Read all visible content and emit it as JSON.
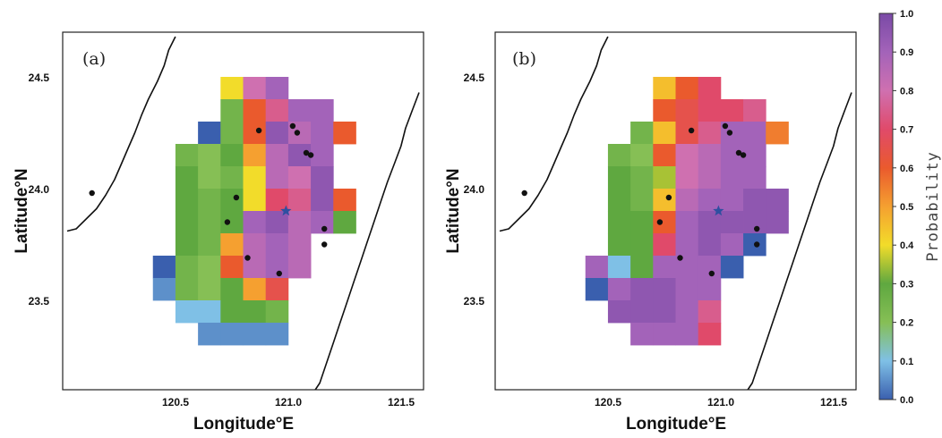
{
  "figure": {
    "colorbar": {
      "title": "Probability",
      "ticks": [
        "0.0",
        "0.1",
        "0.2",
        "0.3",
        "0.4",
        "0.5",
        "0.6",
        "0.7",
        "0.8",
        "0.9",
        "1.0"
      ]
    },
    "xlabel": "Longitude°E",
    "ylabel": "Latitude°N",
    "xticks": [
      "120.5",
      "121.0",
      "121.5"
    ],
    "yticks": [
      "24.5",
      "24.0",
      "23.5"
    ]
  },
  "map_data": {
    "extent": {
      "lon": [
        120.2,
        121.8
      ],
      "lat": [
        23.1,
        24.7
      ]
    },
    "grid_step": 0.1,
    "colorscale": [
      [
        0.0,
        "#3a5fae"
      ],
      [
        0.1,
        "#7fc0e6"
      ],
      [
        0.2,
        "#86bf55"
      ],
      [
        0.3,
        "#5fa840"
      ],
      [
        0.4,
        "#f2dc2a"
      ],
      [
        0.5,
        "#f5a030"
      ],
      [
        0.6,
        "#ea5a2d"
      ],
      [
        0.7,
        "#e04a6a"
      ],
      [
        0.8,
        "#cf70b0"
      ],
      [
        0.9,
        "#a363b9"
      ],
      [
        1.0,
        "#7a4aa6"
      ]
    ],
    "stations": [
      [
        120.33,
        23.98
      ],
      [
        120.97,
        23.96
      ],
      [
        120.93,
        23.85
      ],
      [
        121.07,
        24.26
      ],
      [
        121.22,
        24.28
      ],
      [
        121.24,
        24.25
      ],
      [
        121.28,
        24.16
      ],
      [
        121.3,
        24.15
      ],
      [
        121.02,
        23.69
      ],
      [
        121.16,
        23.62
      ]
    ],
    "extra_stations": [
      [
        121.36,
        23.82
      ],
      [
        121.36,
        23.75
      ]
    ],
    "epicenter": [
      121.19,
      23.9
    ],
    "panels": [
      {
        "label": "(a)",
        "cells": [
          [
            120.95,
            24.45,
            0.4
          ],
          [
            121.05,
            24.45,
            0.8
          ],
          [
            121.15,
            24.45,
            0.9
          ],
          [
            120.95,
            24.35,
            0.25
          ],
          [
            121.05,
            24.35,
            0.6
          ],
          [
            121.15,
            24.35,
            0.75
          ],
          [
            121.25,
            24.35,
            0.9
          ],
          [
            121.35,
            24.35,
            0.9
          ],
          [
            120.85,
            24.25,
            0.0
          ],
          [
            120.95,
            24.25,
            0.25
          ],
          [
            121.05,
            24.25,
            0.6
          ],
          [
            121.15,
            24.25,
            0.95
          ],
          [
            121.25,
            24.25,
            0.85
          ],
          [
            121.35,
            24.25,
            0.9
          ],
          [
            121.45,
            24.25,
            0.6
          ],
          [
            120.75,
            24.15,
            0.25
          ],
          [
            120.85,
            24.15,
            0.2
          ],
          [
            120.95,
            24.15,
            0.3
          ],
          [
            121.05,
            24.15,
            0.5
          ],
          [
            121.15,
            24.15,
            0.85
          ],
          [
            121.25,
            24.15,
            0.95
          ],
          [
            121.35,
            24.15,
            0.9
          ],
          [
            120.75,
            24.05,
            0.3
          ],
          [
            120.85,
            24.05,
            0.2
          ],
          [
            120.95,
            24.05,
            0.25
          ],
          [
            121.05,
            24.05,
            0.4
          ],
          [
            121.15,
            24.05,
            0.85
          ],
          [
            121.25,
            24.05,
            0.8
          ],
          [
            121.35,
            24.05,
            0.95
          ],
          [
            120.75,
            23.95,
            0.3
          ],
          [
            120.85,
            23.95,
            0.25
          ],
          [
            120.95,
            23.95,
            0.3
          ],
          [
            121.05,
            23.95,
            0.4
          ],
          [
            121.15,
            23.95,
            0.7
          ],
          [
            121.25,
            23.95,
            0.75
          ],
          [
            121.35,
            23.95,
            0.95
          ],
          [
            121.45,
            23.95,
            0.6
          ],
          [
            120.75,
            23.85,
            0.3
          ],
          [
            120.85,
            23.85,
            0.25
          ],
          [
            120.95,
            23.85,
            0.3
          ],
          [
            121.05,
            23.85,
            0.9
          ],
          [
            121.15,
            23.85,
            0.95
          ],
          [
            121.25,
            23.85,
            0.85
          ],
          [
            121.35,
            23.85,
            0.9
          ],
          [
            121.45,
            23.85,
            0.3
          ],
          [
            120.75,
            23.75,
            0.3
          ],
          [
            120.85,
            23.75,
            0.25
          ],
          [
            120.95,
            23.75,
            0.5
          ],
          [
            121.05,
            23.75,
            0.85
          ],
          [
            121.15,
            23.75,
            0.9
          ],
          [
            121.25,
            23.75,
            0.85
          ],
          [
            120.65,
            23.65,
            0.0
          ],
          [
            120.75,
            23.65,
            0.25
          ],
          [
            120.85,
            23.65,
            0.2
          ],
          [
            120.95,
            23.65,
            0.6
          ],
          [
            121.05,
            23.65,
            0.85
          ],
          [
            121.15,
            23.65,
            0.9
          ],
          [
            121.25,
            23.65,
            0.85
          ],
          [
            120.65,
            23.55,
            0.05
          ],
          [
            120.75,
            23.55,
            0.25
          ],
          [
            120.85,
            23.55,
            0.2
          ],
          [
            120.95,
            23.55,
            0.3
          ],
          [
            121.05,
            23.55,
            0.5
          ],
          [
            121.15,
            23.55,
            0.65
          ],
          [
            120.75,
            23.45,
            0.1
          ],
          [
            120.85,
            23.45,
            0.1
          ],
          [
            120.95,
            23.45,
            0.3
          ],
          [
            121.05,
            23.45,
            0.3
          ],
          [
            121.15,
            23.45,
            0.25
          ],
          [
            120.85,
            23.35,
            0.05
          ],
          [
            120.95,
            23.35,
            0.05
          ],
          [
            121.05,
            23.35,
            0.05
          ],
          [
            121.15,
            23.35,
            0.05
          ]
        ]
      },
      {
        "label": "(b)",
        "cells": [
          [
            120.95,
            24.45,
            0.45
          ],
          [
            121.05,
            24.45,
            0.6
          ],
          [
            121.15,
            24.45,
            0.7
          ],
          [
            120.95,
            24.35,
            0.6
          ],
          [
            121.05,
            24.35,
            0.65
          ],
          [
            121.15,
            24.35,
            0.7
          ],
          [
            121.25,
            24.35,
            0.7
          ],
          [
            121.35,
            24.35,
            0.75
          ],
          [
            120.85,
            24.25,
            0.25
          ],
          [
            120.95,
            24.25,
            0.45
          ],
          [
            121.05,
            24.25,
            0.65
          ],
          [
            121.15,
            24.25,
            0.75
          ],
          [
            121.25,
            24.25,
            0.9
          ],
          [
            121.35,
            24.25,
            0.9
          ],
          [
            121.45,
            24.25,
            0.55
          ],
          [
            120.75,
            24.15,
            0.25
          ],
          [
            120.85,
            24.15,
            0.2
          ],
          [
            120.95,
            24.15,
            0.6
          ],
          [
            121.05,
            24.15,
            0.8
          ],
          [
            121.15,
            24.15,
            0.85
          ],
          [
            121.25,
            24.15,
            0.9
          ],
          [
            121.35,
            24.15,
            0.9
          ],
          [
            120.75,
            24.05,
            0.3
          ],
          [
            120.85,
            24.05,
            0.25
          ],
          [
            120.95,
            24.05,
            0.35
          ],
          [
            121.05,
            24.05,
            0.8
          ],
          [
            121.15,
            24.05,
            0.85
          ],
          [
            121.25,
            24.05,
            0.9
          ],
          [
            121.35,
            24.05,
            0.9
          ],
          [
            120.75,
            23.95,
            0.3
          ],
          [
            120.85,
            23.95,
            0.25
          ],
          [
            120.95,
            23.95,
            0.45
          ],
          [
            121.05,
            23.95,
            0.85
          ],
          [
            121.15,
            23.95,
            0.9
          ],
          [
            121.25,
            23.95,
            0.9
          ],
          [
            121.35,
            23.95,
            0.95
          ],
          [
            121.45,
            23.95,
            0.95
          ],
          [
            120.75,
            23.85,
            0.3
          ],
          [
            120.85,
            23.85,
            0.3
          ],
          [
            120.95,
            23.85,
            0.6
          ],
          [
            121.05,
            23.85,
            0.9
          ],
          [
            121.15,
            23.85,
            0.95
          ],
          [
            121.25,
            23.85,
            0.95
          ],
          [
            121.35,
            23.85,
            0.95
          ],
          [
            121.45,
            23.85,
            0.95
          ],
          [
            120.75,
            23.75,
            0.3
          ],
          [
            120.85,
            23.75,
            0.3
          ],
          [
            120.95,
            23.75,
            0.7
          ],
          [
            121.05,
            23.75,
            0.9
          ],
          [
            121.15,
            23.75,
            0.95
          ],
          [
            121.25,
            23.75,
            0.9
          ],
          [
            121.35,
            23.75,
            0.0
          ],
          [
            120.65,
            23.65,
            0.9
          ],
          [
            120.75,
            23.65,
            0.1
          ],
          [
            120.85,
            23.65,
            0.3
          ],
          [
            120.95,
            23.65,
            0.9
          ],
          [
            121.05,
            23.65,
            0.9
          ],
          [
            121.15,
            23.65,
            0.9
          ],
          [
            121.25,
            23.65,
            0.0
          ],
          [
            120.65,
            23.55,
            0.0
          ],
          [
            120.75,
            23.55,
            0.9
          ],
          [
            120.85,
            23.55,
            0.95
          ],
          [
            120.95,
            23.55,
            0.95
          ],
          [
            121.05,
            23.55,
            0.9
          ],
          [
            121.15,
            23.55,
            0.9
          ],
          [
            120.75,
            23.45,
            0.95
          ],
          [
            120.85,
            23.45,
            0.95
          ],
          [
            120.95,
            23.45,
            0.95
          ],
          [
            121.05,
            23.45,
            0.9
          ],
          [
            121.15,
            23.45,
            0.75
          ],
          [
            120.85,
            23.35,
            0.9
          ],
          [
            120.95,
            23.35,
            0.9
          ],
          [
            121.05,
            23.35,
            0.9
          ],
          [
            121.15,
            23.35,
            0.7
          ]
        ]
      }
    ],
    "coastline_west": [
      [
        120.7,
        24.68
      ],
      [
        120.67,
        24.62
      ],
      [
        120.65,
        24.55
      ],
      [
        120.62,
        24.48
      ],
      [
        120.58,
        24.4
      ],
      [
        120.55,
        24.33
      ],
      [
        120.52,
        24.25
      ],
      [
        120.49,
        24.18
      ],
      [
        120.46,
        24.11
      ],
      [
        120.43,
        24.04
      ],
      [
        120.39,
        23.97
      ],
      [
        120.35,
        23.91
      ],
      [
        120.3,
        23.86
      ],
      [
        120.26,
        23.82
      ],
      [
        120.22,
        23.81
      ]
    ],
    "coastline_east": [
      [
        121.78,
        24.43
      ],
      [
        121.75,
        24.35
      ],
      [
        121.72,
        24.27
      ],
      [
        121.7,
        24.19
      ],
      [
        121.67,
        24.11
      ],
      [
        121.64,
        24.03
      ],
      [
        121.61,
        23.94
      ],
      [
        121.58,
        23.85
      ],
      [
        121.55,
        23.76
      ],
      [
        121.52,
        23.67
      ],
      [
        121.49,
        23.58
      ],
      [
        121.46,
        23.49
      ],
      [
        121.43,
        23.4
      ],
      [
        121.4,
        23.31
      ],
      [
        121.37,
        23.22
      ],
      [
        121.34,
        23.13
      ],
      [
        121.32,
        23.1
      ]
    ]
  }
}
